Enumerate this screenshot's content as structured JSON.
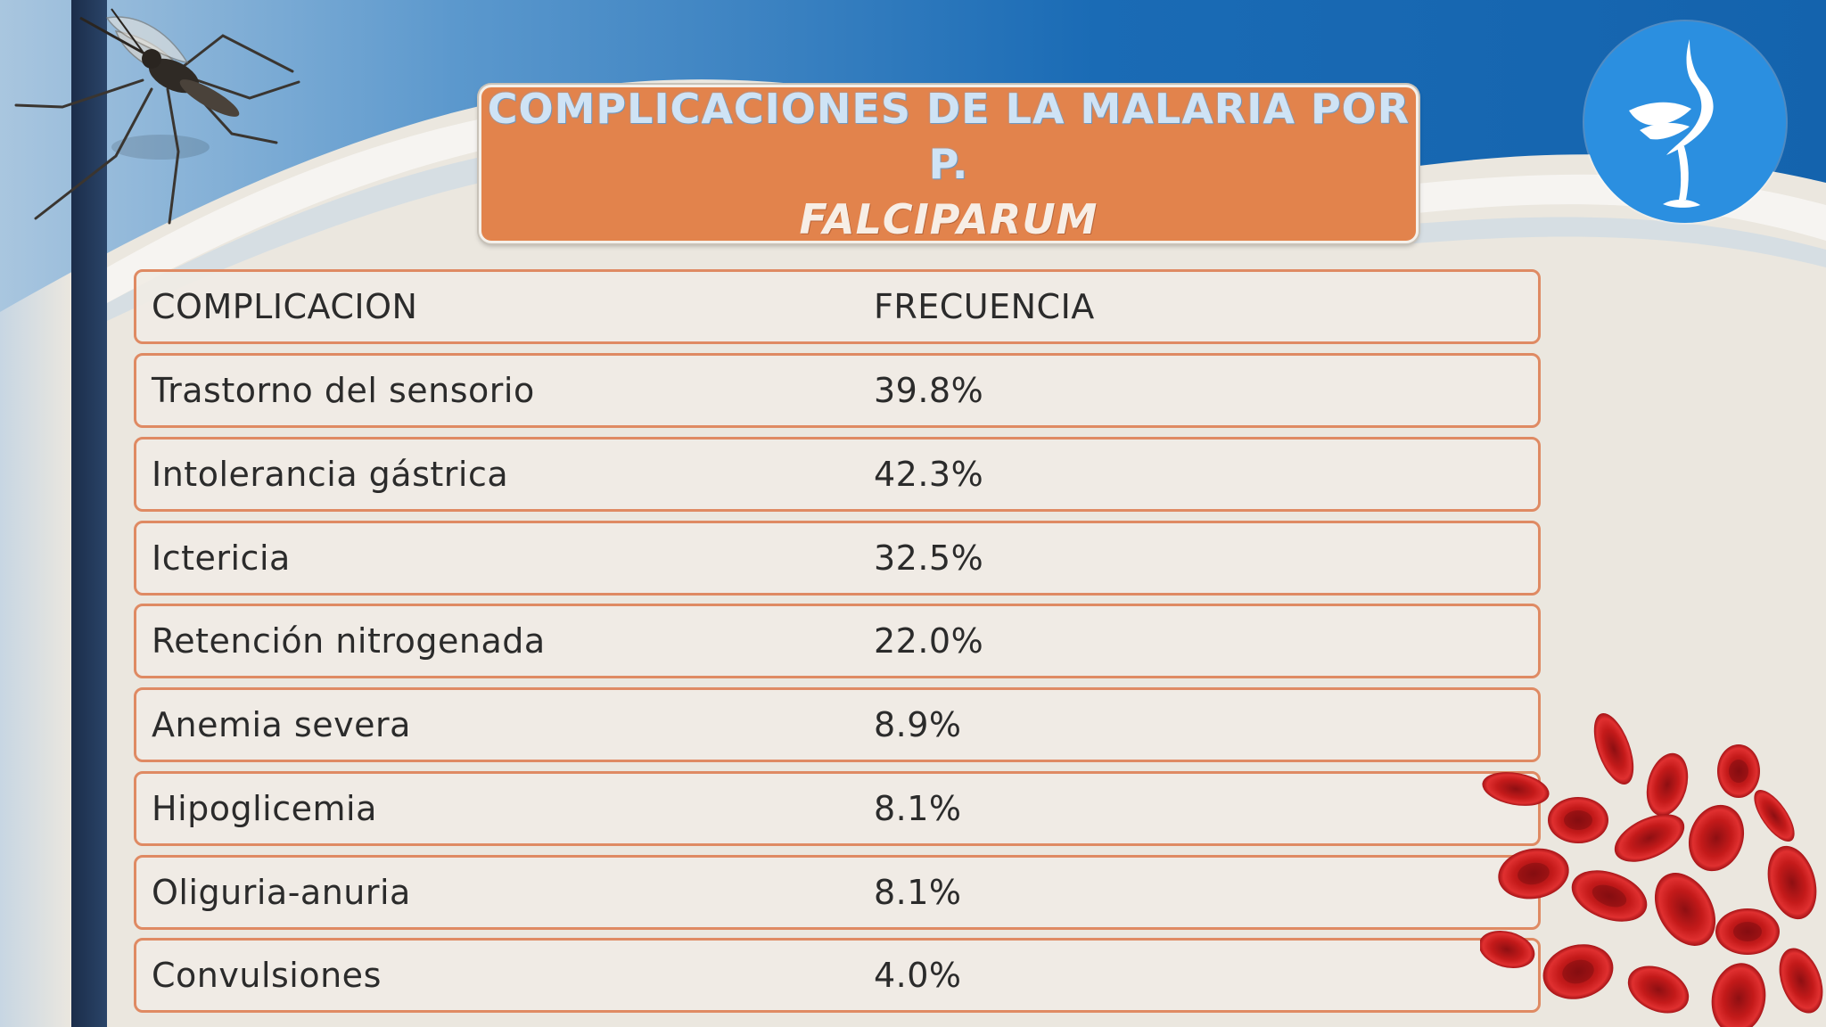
{
  "slide": {
    "title_line1": "COMPLICACIONES DE LA MALARIA POR P.",
    "title_line2": "FALCIPARUM",
    "colors": {
      "title_box": "#e2834c",
      "row_border": "#df8a63",
      "top_band": "#1a6bb5",
      "left_bar": "#1b2d4a",
      "background": "#ebe7df",
      "logo_circle": "#2b8fe0",
      "blood_cells": "#c41a1a"
    },
    "icons": [
      "mosquito-illustration",
      "crane-bird-logo-icon",
      "red-blood-cells-illustration"
    ]
  },
  "table": {
    "header": {
      "col1": "COMPLICACION",
      "col2": "FRECUENCIA"
    },
    "rows": [
      {
        "complicacion": "Trastorno del sensorio",
        "frecuencia": "39.8%"
      },
      {
        "complicacion": "Intolerancia gástrica",
        "frecuencia": "42.3%"
      },
      {
        "complicacion": "Ictericia",
        "frecuencia": "32.5%"
      },
      {
        "complicacion": "Retención nitrogenada",
        "frecuencia": "22.0%"
      },
      {
        "complicacion": "Anemia severa",
        "frecuencia": "8.9%"
      },
      {
        "complicacion": "Hipoglicemia",
        "frecuencia": "8.1%"
      },
      {
        "complicacion": "Oliguria-anuria",
        "frecuencia": "8.1%"
      },
      {
        "complicacion": "Convulsiones",
        "frecuencia": "4.0%"
      }
    ]
  }
}
